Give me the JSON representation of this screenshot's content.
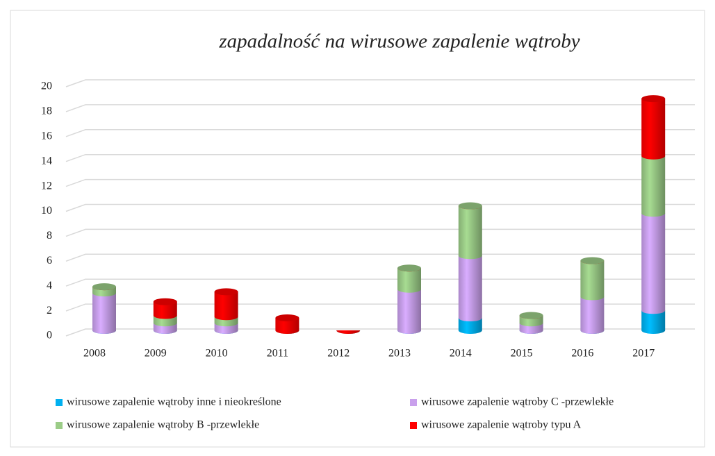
{
  "chart_data": {
    "type": "bar",
    "stacked": true,
    "title": "zapadalność na wirusowe zapalenie wątroby",
    "categories": [
      "2008",
      "2009",
      "2010",
      "2011",
      "2012",
      "2013",
      "2014",
      "2015",
      "2016",
      "2017"
    ],
    "series": [
      {
        "name": "wirusowe zapalenie wątroby inne i nieokreślone",
        "color": "#00b0f0",
        "values": [
          0,
          0,
          0,
          0,
          0,
          0,
          1,
          0,
          0,
          1.6
        ]
      },
      {
        "name": "wirusowe zapalenie wątroby C -przewlekłe",
        "color": "#c9a0ec",
        "values": [
          3,
          0.6,
          0.6,
          0,
          0,
          3.3,
          5,
          0.6,
          2.7,
          7.8
        ]
      },
      {
        "name": "wirusowe zapalenie wątroby B -przewlekłe",
        "color": "#9bcc87",
        "values": [
          0.5,
          0.6,
          0.5,
          0,
          0,
          1.7,
          4,
          0.6,
          2.9,
          4.6
        ]
      },
      {
        "name": "wirusowe zapalenie wątroby typu A",
        "color": "#ff0000",
        "values": [
          0,
          1.1,
          2,
          1,
          0,
          0,
          0,
          0,
          0,
          4.6
        ]
      }
    ],
    "ylim": [
      0,
      20
    ],
    "yticks": [
      0,
      2,
      4,
      6,
      8,
      10,
      12,
      14,
      16,
      18,
      20
    ],
    "grid": true,
    "legend": "bottom"
  }
}
